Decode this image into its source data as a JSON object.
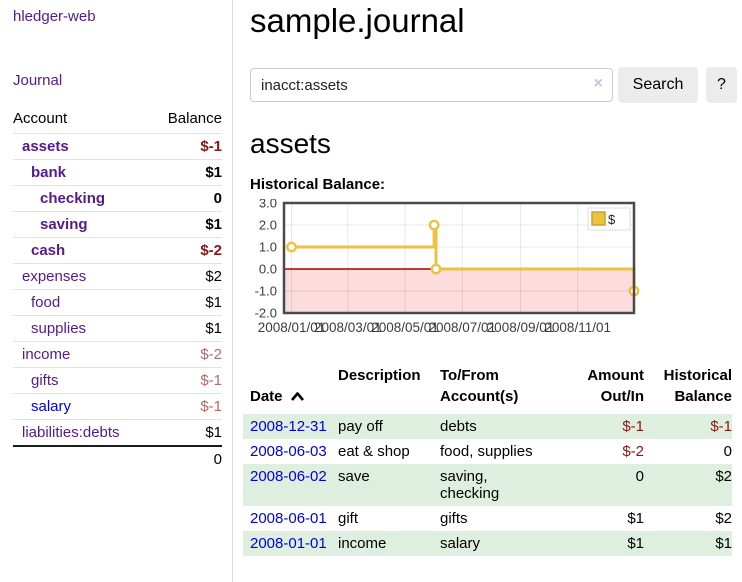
{
  "app": {
    "brand": "hledger-web",
    "nav_journal": "Journal"
  },
  "colors": {
    "link_purple": "#551a8b",
    "link_blue": "#0000ee",
    "date_link_blue": "#0000e0",
    "negative_strong": "#8b1414",
    "negative_soft": "#b56a6a",
    "row_stripe_green": "#dfefdf",
    "button_gray": "#ececec",
    "chart_series_yellow": "#edc240",
    "chart_negative_pink": "#fcdcdc",
    "chart_zero_line_red": "#a40000"
  },
  "sidebar": {
    "account_header": "Account",
    "balance_header": "Balance",
    "accounts": [
      {
        "name": "assets",
        "depth": 1,
        "emph": true,
        "link_color": "purple",
        "balance": "$-1",
        "balance_class": "neg-strong"
      },
      {
        "name": "bank",
        "depth": 2,
        "emph": true,
        "link_color": "purple",
        "balance": "$1",
        "balance_class": ""
      },
      {
        "name": "checking",
        "depth": 3,
        "emph": true,
        "link_color": "purple",
        "balance": "0",
        "balance_class": ""
      },
      {
        "name": "saving",
        "depth": 3,
        "emph": true,
        "link_color": "purple",
        "balance": "$1",
        "balance_class": ""
      },
      {
        "name": "cash",
        "depth": 2,
        "emph": true,
        "link_color": "purple",
        "balance": "$-2",
        "balance_class": "neg-strong"
      },
      {
        "name": "expenses",
        "depth": 1,
        "emph": false,
        "link_color": "purple",
        "balance": "$2",
        "balance_class": ""
      },
      {
        "name": "food",
        "depth": 2,
        "emph": false,
        "link_color": "purple",
        "balance": "$1",
        "balance_class": ""
      },
      {
        "name": "supplies",
        "depth": 2,
        "emph": false,
        "link_color": "purple",
        "balance": "$1",
        "balance_class": ""
      },
      {
        "name": "income",
        "depth": 1,
        "emph": false,
        "link_color": "purple",
        "balance": "$-2",
        "balance_class": "neg-soft"
      },
      {
        "name": "gifts",
        "depth": 2,
        "emph": false,
        "link_color": "purple",
        "balance": "$-1",
        "balance_class": "neg-soft"
      },
      {
        "name": "salary",
        "depth": 2,
        "emph": false,
        "link_color": "blue",
        "balance": "$-1",
        "balance_class": "neg-soft"
      },
      {
        "name": "liabilities:debts",
        "depth": 1,
        "emph": false,
        "link_color": "purple",
        "balance": "$1",
        "balance_class": ""
      }
    ],
    "total": "0"
  },
  "main": {
    "title": "sample.journal",
    "search": {
      "value": "inacct:assets",
      "clear_icon": "×",
      "button_label": "Search",
      "help_label": "?"
    },
    "account_heading": "assets",
    "chart_heading": "Historical Balance:"
  },
  "chart_data": {
    "type": "line",
    "title": "Historical Balance:",
    "step": true,
    "ylim": [
      -2,
      3
    ],
    "xlim_days": [
      -8,
      365
    ],
    "grid": true,
    "legend": {
      "position": "top-right",
      "label": "$"
    },
    "series": [
      {
        "name": "$",
        "color": "#edc240",
        "points": [
          {
            "date": "2008-01-01",
            "day": 0,
            "y": 1.0
          },
          {
            "date": "2008-06-01",
            "day": 152,
            "y": 2.0
          },
          {
            "date": "2008-06-03",
            "day": 154,
            "y": 0.0
          },
          {
            "date": "2008-12-31",
            "day": 365,
            "y": -1.0
          }
        ]
      }
    ],
    "x_ticks": [
      {
        "day": 0,
        "label": "2008/01/01"
      },
      {
        "day": 60,
        "label": "2008/03/01"
      },
      {
        "day": 121,
        "label": "2008/05/01"
      },
      {
        "day": 182,
        "label": "2008/07/01"
      },
      {
        "day": 244,
        "label": "2008/09/01"
      },
      {
        "day": 305,
        "label": "2008/11/01"
      }
    ],
    "y_ticks": [
      {
        "v": 3,
        "label": "3.0"
      },
      {
        "v": 2,
        "label": "2.0"
      },
      {
        "v": 1,
        "label": "1.0"
      },
      {
        "v": 0,
        "label": "0.0"
      },
      {
        "v": -1,
        "label": "-1.0"
      },
      {
        "v": -2,
        "label": "-2.0"
      }
    ],
    "negative_region_color": "#fcdcdc",
    "zero_line_color": "#a40000",
    "border_color": "#4a4a4a"
  },
  "register": {
    "headers": [
      {
        "label": "Date"
      },
      {
        "label": "Description"
      },
      {
        "label": "To/From\nAccount(s)"
      },
      {
        "label": "Amount\nOut/In"
      },
      {
        "label": "Historical\nBalance"
      }
    ],
    "rows": [
      {
        "date": "2008-12-31",
        "description": "pay off",
        "accounts": "debts",
        "amount": "$-1",
        "amount_neg": true,
        "balance": "$-1",
        "balance_neg": true,
        "stripe": true
      },
      {
        "date": "2008-06-03",
        "description": "eat & shop",
        "accounts": "food, supplies",
        "amount": "$-2",
        "amount_neg": true,
        "balance": "0",
        "balance_neg": false,
        "stripe": false
      },
      {
        "date": "2008-06-02",
        "description": "save",
        "accounts": "saving,\nchecking",
        "amount": "0",
        "amount_neg": false,
        "balance": "$2",
        "balance_neg": false,
        "stripe": true
      },
      {
        "date": "2008-06-01",
        "description": "gift",
        "accounts": "gifts",
        "amount": "$1",
        "amount_neg": false,
        "balance": "$2",
        "balance_neg": false,
        "stripe": false
      },
      {
        "date": "2008-01-01",
        "description": "income",
        "accounts": "salary",
        "amount": "$1",
        "amount_neg": false,
        "balance": "$1",
        "balance_neg": false,
        "stripe": true
      }
    ]
  }
}
